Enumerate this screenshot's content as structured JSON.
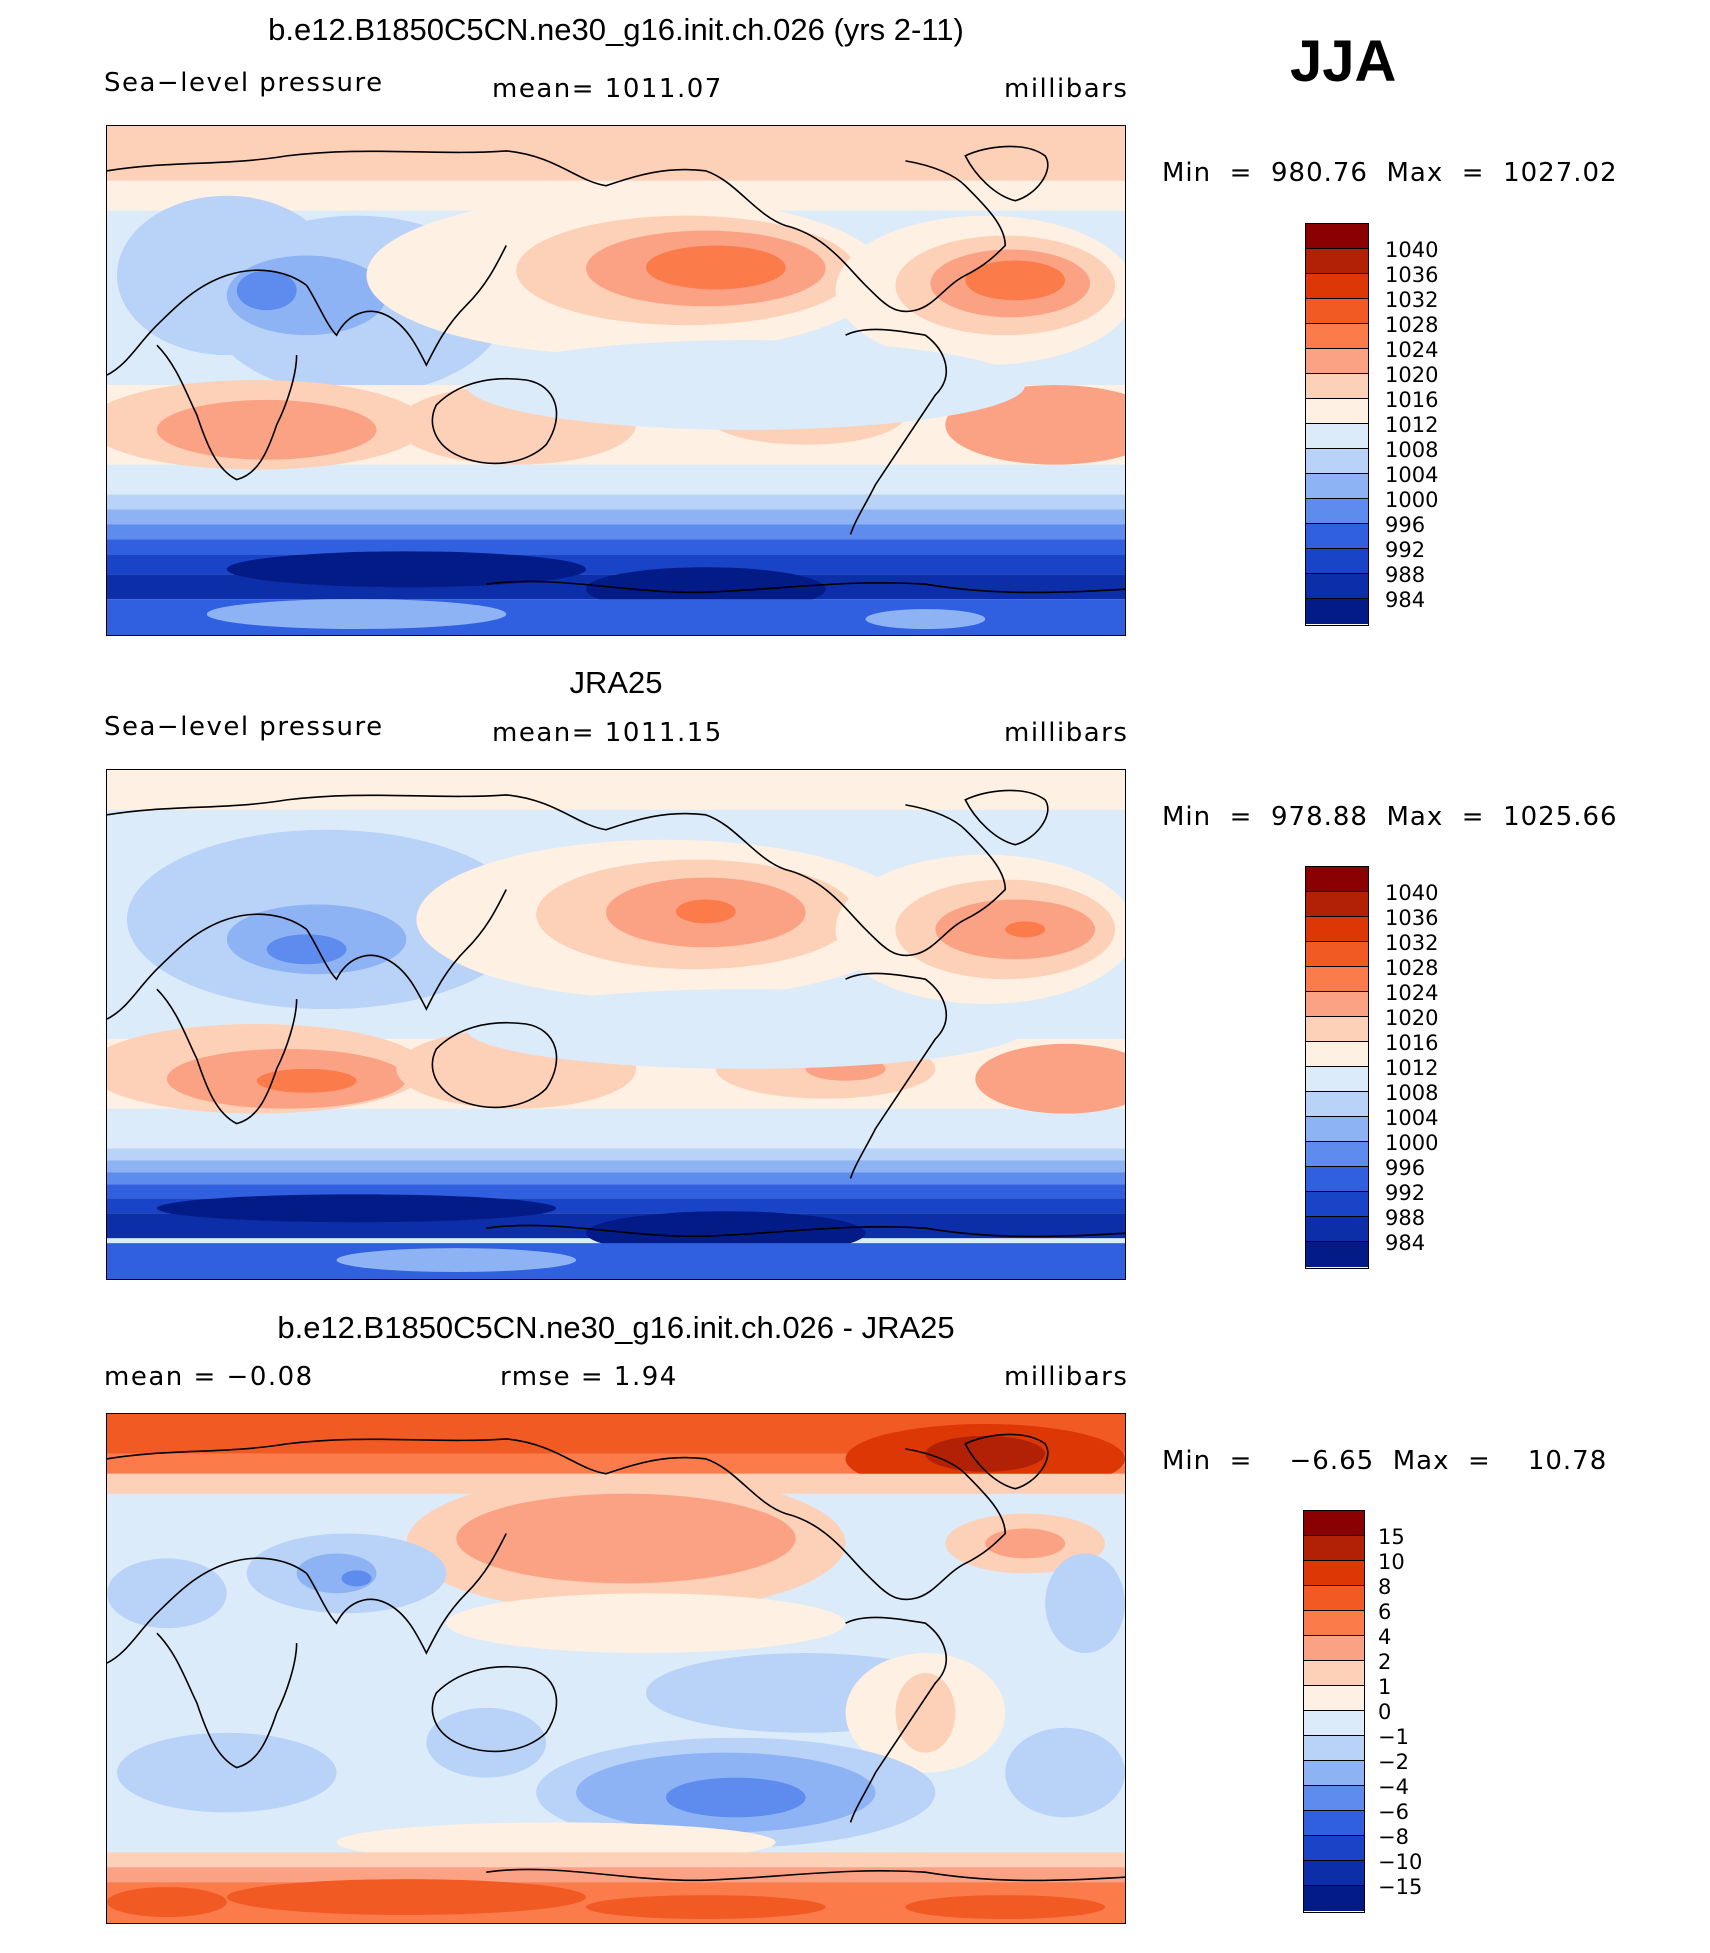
{
  "season": "JJA",
  "panels": [
    {
      "title": "b.e12.B1850C5CN.ne30_g16.init.ch.026 (yrs 2-11)",
      "left_label": "Sea−level pressure",
      "center_label": "mean=  1011.07",
      "right_label": "millibars",
      "stats": "Min  =  980.76  Max  =  1027.02",
      "colorbar": {
        "colors": [
          "#8b0000",
          "#b22006",
          "#dc3705",
          "#f25a24",
          "#fb7b4b",
          "#fca284",
          "#fdd0b8",
          "#fef0e2",
          "#dbebf9",
          "#b9d2f7",
          "#8eb3f4",
          "#5d8cee",
          "#3060e0",
          "#1a44c8",
          "#0c2ea8",
          "#031b86"
        ],
        "labels": [
          "1040",
          "1036",
          "1032",
          "1028",
          "1024",
          "1020",
          "1016",
          "1012",
          "1008",
          "1004",
          "1000",
          "996",
          "992",
          "988",
          "984"
        ]
      }
    },
    {
      "title": "JRA25",
      "left_label": "Sea−level pressure",
      "center_label": "mean=  1011.15",
      "right_label": "millibars",
      "stats": "Min  =  978.88  Max  =  1025.66",
      "colorbar": {
        "colors": [
          "#8b0000",
          "#b22006",
          "#dc3705",
          "#f25a24",
          "#fb7b4b",
          "#fca284",
          "#fdd0b8",
          "#fef0e2",
          "#dbebf9",
          "#b9d2f7",
          "#8eb3f4",
          "#5d8cee",
          "#3060e0",
          "#1a44c8",
          "#0c2ea8",
          "#031b86"
        ],
        "labels": [
          "1040",
          "1036",
          "1032",
          "1028",
          "1024",
          "1020",
          "1016",
          "1012",
          "1008",
          "1004",
          "1000",
          "996",
          "992",
          "988",
          "984"
        ]
      }
    },
    {
      "title": "b.e12.B1850C5CN.ne30_g16.init.ch.026 - JRA25",
      "left_label": "mean  =    −0.08",
      "center_label": "rmse  =     1.94",
      "right_label": "millibars",
      "stats": "Min  =    −6.65  Max  =    10.78",
      "colorbar": {
        "colors": [
          "#8b0000",
          "#b22006",
          "#dc3705",
          "#f25a24",
          "#fb7b4b",
          "#fca284",
          "#fdd0b8",
          "#fef0e2",
          "#dbebf9",
          "#b9d2f7",
          "#8eb3f4",
          "#5d8cee",
          "#3060e0",
          "#1a44c8",
          "#0c2ea8",
          "#031b86"
        ],
        "labels": [
          "15",
          "10",
          "8",
          "6",
          "4",
          "2",
          "1",
          "0",
          "−1",
          "−2",
          "−4",
          "−6",
          "−8",
          "−10",
          "−15"
        ]
      }
    }
  ]
}
